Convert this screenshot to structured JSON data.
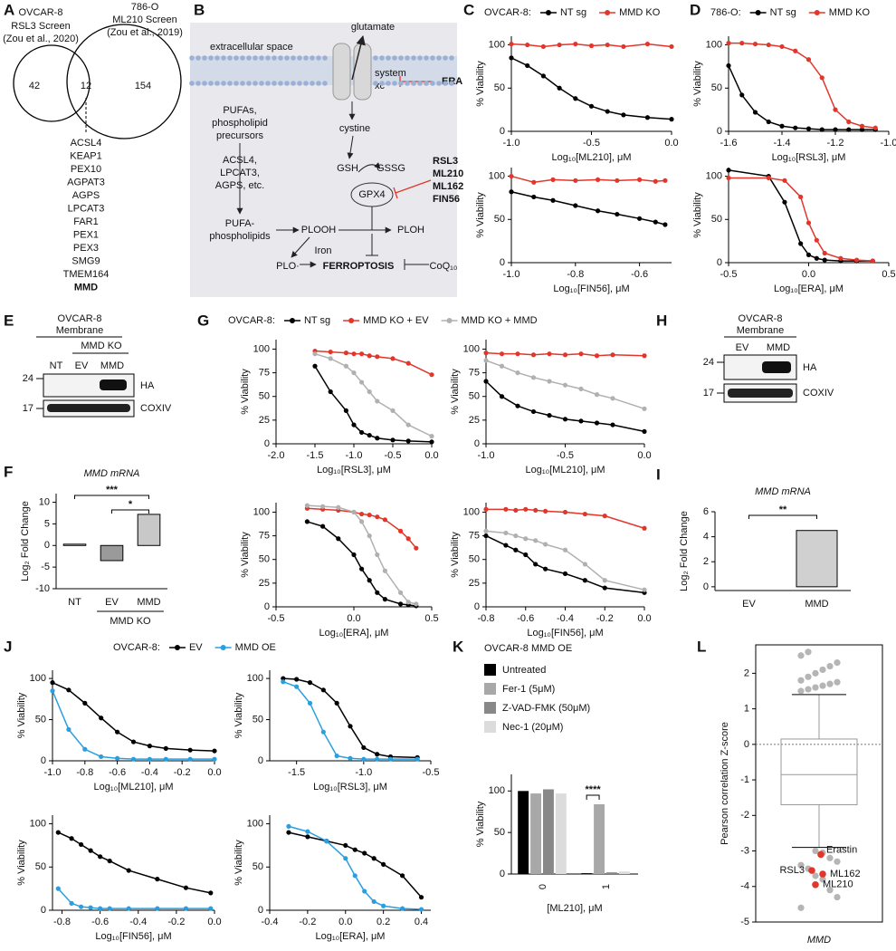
{
  "panel_labels": [
    "A",
    "B",
    "C",
    "D",
    "E",
    "F",
    "G",
    "H",
    "I",
    "J",
    "K",
    "L"
  ],
  "venn": {
    "left_title": [
      "OVCAR-8",
      "RSL3 Screen"
    ],
    "left_cite": "(Zou et al., 2020)",
    "right_title": [
      "786-O",
      "ML210 Screen"
    ],
    "right_cite": "(Zou et al., 2019)",
    "counts": [
      42,
      12,
      154
    ],
    "genes": [
      "ACSL4",
      "KEAP1",
      "PEX10",
      "AGPAT3",
      "AGPS",
      "LPCAT3",
      "FAR1",
      "PEX1",
      "PEX3",
      "SMG9",
      "TMEM164",
      "MMD"
    ]
  },
  "pathway": {
    "labels": [
      "extracellular space",
      "glutamate",
      "system",
      "xc⁻",
      "ERA",
      "PUFAs,",
      "phospholipid",
      "precursors",
      "cystine",
      "ACSL4,",
      "LPCAT3,",
      "AGPS, etc.",
      "GSH",
      "GSSG",
      "RSL3",
      "ML210",
      "ML162",
      "FIN56",
      "GPX4",
      "PUFA-",
      "phospholipids",
      "PLOOH",
      "PLOH",
      "Iron",
      "PLO·",
      "FERROPTOSIS",
      "CoQ₁₀"
    ]
  },
  "blots": [
    {
      "header": [
        "OVCAR-8",
        "Membrane"
      ],
      "group": "MMD KO",
      "lanes": [
        "NT",
        "EV",
        "MMD"
      ],
      "markers": [
        "24",
        "17"
      ],
      "antibodies": [
        "HA",
        "COXIV"
      ]
    },
    {
      "header": [
        "OVCAR-8",
        "Membrane"
      ],
      "lanes": [
        "EV",
        "MMD"
      ],
      "markers": [
        "24",
        "17"
      ],
      "antibodies": [
        "HA",
        "COXIV"
      ]
    }
  ],
  "chart_data": [
    {
      "type": "line",
      "legend_title": "OVCAR-8:",
      "xlabel": "Log₁₀[ML210], μM",
      "ylabel": "% Viability",
      "x": [
        -1,
        -0.9,
        -0.8,
        -0.7,
        -0.6,
        -0.5,
        -0.4,
        -0.3,
        -0.15,
        0
      ],
      "series": [
        {
          "name": "NT sg",
          "color": "#000000",
          "values": [
            85,
            76,
            64,
            50,
            38,
            29,
            23,
            19,
            16,
            14
          ]
        },
        {
          "name": "MMD KO",
          "color": "#e2362b",
          "values": [
            101,
            100,
            98,
            100,
            101,
            99,
            100,
            98,
            101,
            98
          ]
        }
      ],
      "xlim": [
        -1,
        0
      ],
      "ylim": [
        0,
        110
      ],
      "xticks": [
        {
          "value": -1,
          "label": "-1.0"
        },
        -0.5,
        {
          "value": 0,
          "label": "0.0"
        }
      ],
      "yticks": [
        0,
        50,
        100
      ]
    },
    {
      "type": "line",
      "xlabel": "Log₁₀[FIN56], μM",
      "ylabel": "% Viability",
      "x": [
        -1,
        -0.93,
        -0.87,
        -0.8,
        -0.73,
        -0.67,
        -0.6,
        -0.55,
        -0.52
      ],
      "series": [
        {
          "name": "NT sg",
          "color": "#000000",
          "values": [
            82,
            76,
            72,
            66,
            60,
            56,
            51,
            47,
            44
          ]
        },
        {
          "name": "MMD KO",
          "color": "#e2362b",
          "values": [
            100,
            93,
            96,
            95,
            96,
            95,
            96,
            94,
            95
          ]
        }
      ],
      "xlim": [
        -1,
        -0.5
      ],
      "ylim": [
        0,
        110
      ],
      "xticks": [
        {
          "value": -1,
          "label": "-1.0"
        },
        -0.8,
        -0.6
      ],
      "yticks": [
        0,
        50,
        100
      ]
    },
    {
      "type": "line",
      "legend_title": "786-O:",
      "xlabel": "Log₁₀[RSL3], μM",
      "ylabel": "% Viability",
      "x": [
        -1.6,
        -1.55,
        -1.5,
        -1.45,
        -1.4,
        -1.35,
        -1.3,
        -1.25,
        -1.2,
        -1.15,
        -1.1,
        -1.05
      ],
      "series": [
        {
          "name": "NT sg",
          "color": "#000000",
          "values": [
            76,
            42,
            22,
            11,
            6,
            4,
            3,
            2,
            2,
            2,
            2,
            2
          ]
        },
        {
          "name": "MMD KO",
          "color": "#e2362b",
          "values": [
            102,
            102,
            101,
            100,
            98,
            93,
            83,
            62,
            25,
            11,
            6,
            4
          ]
        }
      ],
      "xlim": [
        -1.6,
        -1
      ],
      "ylim": [
        0,
        110
      ],
      "xticks": [
        -1.6,
        -1.4,
        -1.2,
        {
          "value": -1,
          "label": "-1.0"
        }
      ],
      "yticks": [
        0,
        50,
        100
      ]
    },
    {
      "type": "line",
      "xlabel": "Log₁₀[ERA], μM",
      "ylabel": "% Viability",
      "x": [
        -0.5,
        -0.25,
        -0.15,
        -0.05,
        0,
        0.05,
        0.1,
        0.2,
        0.3,
        0.4
      ],
      "series": [
        {
          "name": "NT sg",
          "color": "#000000",
          "values": [
            107,
            100,
            70,
            22,
            9,
            5,
            3,
            2,
            2,
            2
          ]
        },
        {
          "name": "MMD KO",
          "color": "#e2362b",
          "values": [
            98,
            98,
            95,
            76,
            46,
            26,
            11,
            5,
            3,
            2
          ]
        }
      ],
      "xlim": [
        -0.5,
        0.5
      ],
      "ylim": [
        0,
        110
      ],
      "xticks": [
        -0.5,
        {
          "value": 0,
          "label": "0.0"
        },
        0.5
      ],
      "yticks": [
        0,
        50,
        100
      ]
    },
    {
      "type": "bar",
      "title": "MMD mRNA",
      "ylabel": "Log₂ Fold Change",
      "categories": [
        "NT",
        "EV",
        "MMD"
      ],
      "values": [
        0.3,
        -3.5,
        7.2
      ],
      "colors": [
        "#ffffff",
        "#9a9a9a",
        "#c8c8c8"
      ],
      "group_label": "MMD KO",
      "annotations": [
        "***",
        "*"
      ],
      "ylim": [
        -10,
        12
      ],
      "yticks": [
        -10,
        -5,
        0,
        5,
        10
      ]
    },
    {
      "type": "line",
      "legend_title": "OVCAR-8:",
      "xlabel": "Log₁₀[RSL3], μM",
      "ylabel": "% Viability",
      "x": [
        -1.5,
        -1.3,
        -1.1,
        -1,
        -0.9,
        -0.8,
        -0.7,
        -0.5,
        -0.3,
        0
      ],
      "series": [
        {
          "name": "NT sg",
          "color": "#000000",
          "values": [
            82,
            55,
            35,
            20,
            12,
            9,
            6,
            4,
            3,
            2
          ]
        },
        {
          "name": "MMD KO + EV",
          "color": "#e2362b",
          "values": [
            98,
            97,
            96,
            95,
            95,
            93,
            92,
            90,
            85,
            73
          ]
        },
        {
          "name": "MMD KO + MMD",
          "color": "#b0b0b0",
          "values": [
            95,
            90,
            82,
            75,
            65,
            55,
            45,
            35,
            20,
            8
          ]
        }
      ],
      "xlim": [
        -2,
        0
      ],
      "ylim": [
        0,
        110
      ],
      "xticks": [
        {
          "value": -2,
          "label": "-2.0"
        },
        -1.5,
        {
          "value": -1,
          "label": "-1.0"
        },
        -0.5,
        {
          "value": 0,
          "label": "0.0"
        }
      ],
      "yticks": [
        0,
        25,
        50,
        75,
        100
      ]
    },
    {
      "type": "line",
      "xlabel": "Log₁₀[ML210], μM",
      "ylabel": "% Viability",
      "x": [
        -1,
        -0.9,
        -0.8,
        -0.7,
        -0.6,
        -0.5,
        -0.4,
        -0.3,
        -0.2,
        0
      ],
      "series": [
        {
          "name": "NT sg",
          "color": "#000000",
          "values": [
            66,
            50,
            40,
            34,
            30,
            26,
            24,
            22,
            20,
            13
          ]
        },
        {
          "name": "MMD KO + EV",
          "color": "#e2362b",
          "values": [
            96,
            95,
            95,
            94,
            95,
            94,
            95,
            93,
            94,
            93
          ]
        },
        {
          "name": "MMD KO + MMD",
          "color": "#b0b0b0",
          "values": [
            88,
            82,
            75,
            70,
            66,
            62,
            58,
            52,
            48,
            37
          ]
        }
      ],
      "xlim": [
        -1,
        0
      ],
      "ylim": [
        0,
        110
      ],
      "xticks": [
        {
          "value": -1,
          "label": "-1.0"
        },
        -0.5,
        {
          "value": 0,
          "label": "0.0"
        }
      ],
      "yticks": [
        0,
        25,
        50,
        75,
        100
      ]
    },
    {
      "type": "line",
      "xlabel": "Log₁₀[ERA], μM",
      "ylabel": "% Viability",
      "x": [
        -0.3,
        -0.2,
        -0.1,
        0,
        0.05,
        0.1,
        0.15,
        0.2,
        0.3,
        0.35,
        0.4
      ],
      "series": [
        {
          "name": "NT sg",
          "color": "#000000",
          "values": [
            90,
            85,
            72,
            55,
            40,
            28,
            15,
            8,
            3,
            2,
            1
          ]
        },
        {
          "name": "MMD KO + EV",
          "color": "#e2362b",
          "values": [
            104,
            103,
            102,
            100,
            98,
            97,
            95,
            92,
            80,
            72,
            62
          ]
        },
        {
          "name": "MMD KO + MMD",
          "color": "#b0b0b0",
          "values": [
            107,
            106,
            105,
            100,
            90,
            75,
            55,
            38,
            15,
            5,
            3
          ]
        }
      ],
      "xlim": [
        -0.5,
        0.5
      ],
      "ylim": [
        0,
        110
      ],
      "xticks": [
        -0.5,
        {
          "value": 0,
          "label": "0.0"
        },
        0.5
      ],
      "yticks": [
        0,
        25,
        50,
        75,
        100
      ]
    },
    {
      "type": "line",
      "xlabel": "Log₁₀[FIN56], μM",
      "ylabel": "% Viability",
      "x": [
        -0.8,
        -0.7,
        -0.65,
        -0.6,
        -0.55,
        -0.5,
        -0.4,
        -0.3,
        -0.2,
        0
      ],
      "series": [
        {
          "name": "NT sg",
          "color": "#000000",
          "values": [
            75,
            65,
            60,
            55,
            45,
            40,
            35,
            28,
            20,
            15
          ]
        },
        {
          "name": "MMD KO + EV",
          "color": "#e2362b",
          "values": [
            103,
            103,
            102,
            103,
            102,
            101,
            100,
            98,
            96,
            83
          ]
        },
        {
          "name": "MMD KO + MMD",
          "color": "#b0b0b0",
          "values": [
            80,
            78,
            75,
            72,
            70,
            66,
            60,
            45,
            28,
            18
          ]
        }
      ],
      "xlim": [
        -0.8,
        0
      ],
      "ylim": [
        0,
        110
      ],
      "xticks": [
        -0.8,
        -0.6,
        -0.4,
        -0.2,
        {
          "value": 0,
          "label": "0.0"
        }
      ],
      "yticks": [
        0,
        25,
        50,
        75,
        100
      ]
    },
    {
      "type": "bar",
      "title": "MMD mRNA",
      "ylabel": "Log₂ Fold Change",
      "categories": [
        "EV",
        "MMD"
      ],
      "values": [
        0,
        4.5
      ],
      "colors": [
        "#ffffff",
        "#d0d0d0"
      ],
      "annotations": [
        "**"
      ],
      "ylim": [
        -0.3,
        6
      ],
      "yticks": [
        0,
        2,
        4,
        6
      ]
    },
    {
      "type": "line",
      "legend_title": "OVCAR-8:",
      "xlabel": "Log₁₀[ML210], μM",
      "ylabel": "% Viability",
      "x": [
        -1,
        -0.9,
        -0.8,
        -0.7,
        -0.6,
        -0.5,
        -0.4,
        -0.3,
        -0.15,
        0
      ],
      "series": [
        {
          "name": "EV",
          "color": "#000000",
          "values": [
            95,
            86,
            70,
            52,
            35,
            23,
            18,
            15,
            13,
            12
          ]
        },
        {
          "name": "MMD OE",
          "color": "#2a9fe0",
          "values": [
            85,
            38,
            14,
            5,
            3,
            2,
            2,
            2,
            2,
            2
          ]
        }
      ],
      "xlim": [
        -1,
        0
      ],
      "ylim": [
        0,
        110
      ],
      "xticks": [
        {
          "value": -1,
          "label": "-1.0"
        },
        -0.8,
        -0.6,
        -0.4,
        -0.2,
        {
          "value": 0,
          "label": "0.0"
        }
      ],
      "yticks": [
        0,
        50,
        100
      ]
    },
    {
      "type": "line",
      "xlabel": "Log₁₀[RSL3], μM",
      "ylabel": "% Viability",
      "x": [
        -1.6,
        -1.5,
        -1.4,
        -1.3,
        -1.2,
        -1.1,
        -1,
        -0.9,
        -0.8,
        -0.6
      ],
      "series": [
        {
          "name": "EV",
          "color": "#000000",
          "values": [
            100,
            99,
            95,
            86,
            70,
            42,
            16,
            8,
            5,
            4
          ]
        },
        {
          "name": "MMD OE",
          "color": "#2a9fe0",
          "values": [
            96,
            90,
            70,
            35,
            6,
            3,
            2,
            2,
            2,
            2
          ]
        }
      ],
      "xlim": [
        -1.7,
        -0.5
      ],
      "ylim": [
        0,
        110
      ],
      "xticks": [
        -1.5,
        {
          "value": -1,
          "label": "-1.0"
        },
        -0.5
      ],
      "yticks": [
        0,
        50,
        100
      ]
    },
    {
      "type": "line",
      "xlabel": "Log₁₀[FIN56], μM",
      "ylabel": "% Viability",
      "x": [
        -0.82,
        -0.75,
        -0.7,
        -0.65,
        -0.6,
        -0.55,
        -0.45,
        -0.3,
        -0.15,
        -0.02
      ],
      "series": [
        {
          "name": "EV",
          "color": "#000000",
          "values": [
            90,
            83,
            76,
            69,
            62,
            57,
            46,
            36,
            26,
            20
          ]
        },
        {
          "name": "MMD OE",
          "color": "#2a9fe0",
          "values": [
            25,
            8,
            4,
            3,
            2,
            2,
            2,
            2,
            2,
            2
          ]
        }
      ],
      "xlim": [
        -0.85,
        0
      ],
      "ylim": [
        0,
        110
      ],
      "xticks": [
        -0.8,
        -0.6,
        -0.4,
        -0.2,
        {
          "value": 0,
          "label": "0.0"
        }
      ],
      "yticks": [
        0,
        50,
        100
      ]
    },
    {
      "type": "line",
      "xlabel": "Log₁₀[ERA], μM",
      "ylabel": "% Viability",
      "x": [
        -0.3,
        -0.2,
        -0.1,
        0,
        0.05,
        0.1,
        0.15,
        0.2,
        0.3,
        0.4
      ],
      "series": [
        {
          "name": "EV",
          "color": "#000000",
          "values": [
            90,
            85,
            80,
            75,
            70,
            66,
            60,
            53,
            40,
            15
          ]
        },
        {
          "name": "MMD OE",
          "color": "#2a9fe0",
          "values": [
            97,
            91,
            80,
            60,
            40,
            22,
            10,
            5,
            2,
            1
          ]
        }
      ],
      "xlim": [
        -0.4,
        0.45
      ],
      "ylim": [
        0,
        110
      ],
      "xticks": [
        -0.4,
        -0.2,
        {
          "value": 0,
          "label": "0.0"
        },
        0.2,
        0.4
      ],
      "yticks": [
        0,
        50,
        100
      ]
    },
    {
      "type": "bar",
      "title": "OVCAR-8 MMD OE",
      "xlabel": "[ML210], μM",
      "ylabel": "% Viability",
      "categories": [
        "0",
        "1"
      ],
      "series": [
        {
          "name": "Untreated",
          "color": "#000000",
          "values": [
            100,
            1
          ]
        },
        {
          "name": "Fer-1 (5μM)",
          "color": "#a8a8a8",
          "values": [
            97,
            84
          ]
        },
        {
          "name": "Z-VAD-FMK (50μM)",
          "color": "#888888",
          "values": [
            102,
            2
          ]
        },
        {
          "name": "Nec-1 (20μM)",
          "color": "#dcdcdc",
          "values": [
            97,
            3
          ]
        }
      ],
      "annotations": [
        "****"
      ],
      "ylim": [
        0,
        120
      ],
      "yticks": [
        0,
        50,
        100
      ]
    },
    {
      "type": "box",
      "xlabel": "MMD",
      "ylabel": "Pearson correlation Z-score",
      "box": {
        "whisker_low": -2.9,
        "q1": -1.7,
        "median": -0.85,
        "q3": 0.15,
        "whisker_high": 1.4
      },
      "points": [
        1.5,
        1.55,
        1.6,
        1.65,
        1.7,
        1.75,
        1.8,
        1.9,
        2.0,
        2.1,
        2.2,
        2.3,
        2.5,
        2.6,
        -3.0,
        -3.05,
        -3.2,
        -3.3,
        -3.4,
        -3.5,
        -3.7,
        -3.8,
        -4.1,
        -4.3,
        -4.6
      ],
      "highlights": [
        {
          "name": "Erastin",
          "value": -3.1
        },
        {
          "name": "RSL3",
          "value": -3.55
        },
        {
          "name": "ML162",
          "value": -3.65
        },
        {
          "name": "ML210",
          "value": -3.95
        }
      ],
      "hline": 0,
      "ylim": [
        -5,
        2.8
      ],
      "yticks": [
        -5,
        -4,
        -3,
        -2,
        -1,
        0,
        1,
        2
      ]
    }
  ]
}
